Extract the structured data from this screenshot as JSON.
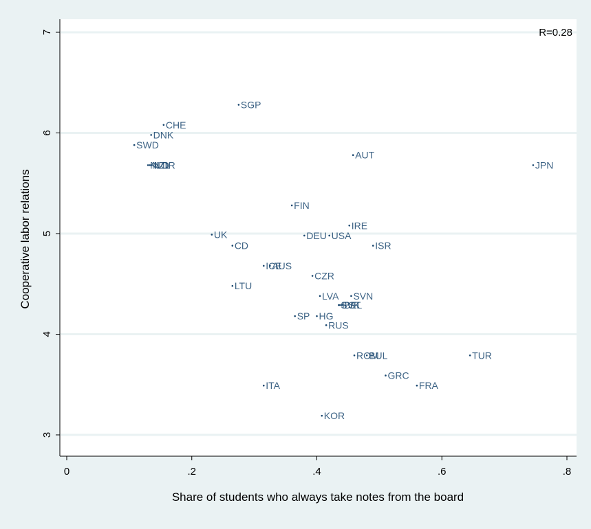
{
  "chart_data": {
    "type": "scatter",
    "xlabel": "Share of students who always take notes from the board",
    "ylabel": "Cooperative labor relations",
    "xlim": [
      0,
      0.8
    ],
    "ylim": [
      3,
      7
    ],
    "x_ticks": [
      {
        "value": 0,
        "label": "0"
      },
      {
        "value": 0.2,
        "label": ".2"
      },
      {
        "value": 0.4,
        "label": ".4"
      },
      {
        "value": 0.6,
        "label": ".6"
      },
      {
        "value": 0.8,
        "label": ".8"
      }
    ],
    "y_ticks": [
      {
        "value": 3,
        "label": "3"
      },
      {
        "value": 4,
        "label": "4"
      },
      {
        "value": 5,
        "label": "5"
      },
      {
        "value": 6,
        "label": "6"
      },
      {
        "value": 7,
        "label": "7"
      }
    ],
    "grid": true,
    "annotation": "R=0.28",
    "colors": {
      "marker": "#1a476f",
      "background": "#eaf2f3",
      "plot_background": "#ffffff",
      "grid": "#eaf2f3"
    },
    "points": [
      {
        "label": "SGP",
        "x": 0.275,
        "y": 6.28
      },
      {
        "label": "CHE",
        "x": 0.155,
        "y": 6.08
      },
      {
        "label": "DNK",
        "x": 0.135,
        "y": 5.98
      },
      {
        "label": "SWD",
        "x": 0.108,
        "y": 5.88
      },
      {
        "label": "NLD",
        "x": 0.13,
        "y": 5.68
      },
      {
        "label": "NZL",
        "x": 0.133,
        "y": 5.68
      },
      {
        "label": "NOR",
        "x": 0.136,
        "y": 5.68
      },
      {
        "label": "AUT",
        "x": 0.458,
        "y": 5.78
      },
      {
        "label": "JPN",
        "x": 0.746,
        "y": 5.68
      },
      {
        "label": "FIN",
        "x": 0.36,
        "y": 5.28
      },
      {
        "label": "IRE",
        "x": 0.452,
        "y": 5.08
      },
      {
        "label": "UK",
        "x": 0.232,
        "y": 4.99
      },
      {
        "label": "DEU",
        "x": 0.38,
        "y": 4.98
      },
      {
        "label": "USA",
        "x": 0.42,
        "y": 4.98
      },
      {
        "label": "CD",
        "x": 0.265,
        "y": 4.88
      },
      {
        "label": "ISR",
        "x": 0.49,
        "y": 4.88
      },
      {
        "label": "ICE",
        "x": 0.315,
        "y": 4.68
      },
      {
        "label": "AUS",
        "x": 0.325,
        "y": 4.68
      },
      {
        "label": "CZR",
        "x": 0.393,
        "y": 4.58
      },
      {
        "label": "LTU",
        "x": 0.265,
        "y": 4.48
      },
      {
        "label": "LVA",
        "x": 0.405,
        "y": 4.38
      },
      {
        "label": "SVN",
        "x": 0.455,
        "y": 4.38
      },
      {
        "label": "SVK",
        "x": 0.435,
        "y": 4.29
      },
      {
        "label": "EST",
        "x": 0.437,
        "y": 4.29
      },
      {
        "label": "BEL",
        "x": 0.44,
        "y": 4.29
      },
      {
        "label": "SP",
        "x": 0.365,
        "y": 4.18
      },
      {
        "label": "HG",
        "x": 0.4,
        "y": 4.18
      },
      {
        "label": "RUS",
        "x": 0.415,
        "y": 4.09
      },
      {
        "label": "ROM",
        "x": 0.46,
        "y": 3.79
      },
      {
        "label": "BUL",
        "x": 0.48,
        "y": 3.79
      },
      {
        "label": "TUR",
        "x": 0.645,
        "y": 3.79
      },
      {
        "label": "GRC",
        "x": 0.51,
        "y": 3.59
      },
      {
        "label": "FRA",
        "x": 0.56,
        "y": 3.49
      },
      {
        "label": "ITA",
        "x": 0.315,
        "y": 3.49
      },
      {
        "label": "KOR",
        "x": 0.408,
        "y": 3.19
      }
    ]
  }
}
